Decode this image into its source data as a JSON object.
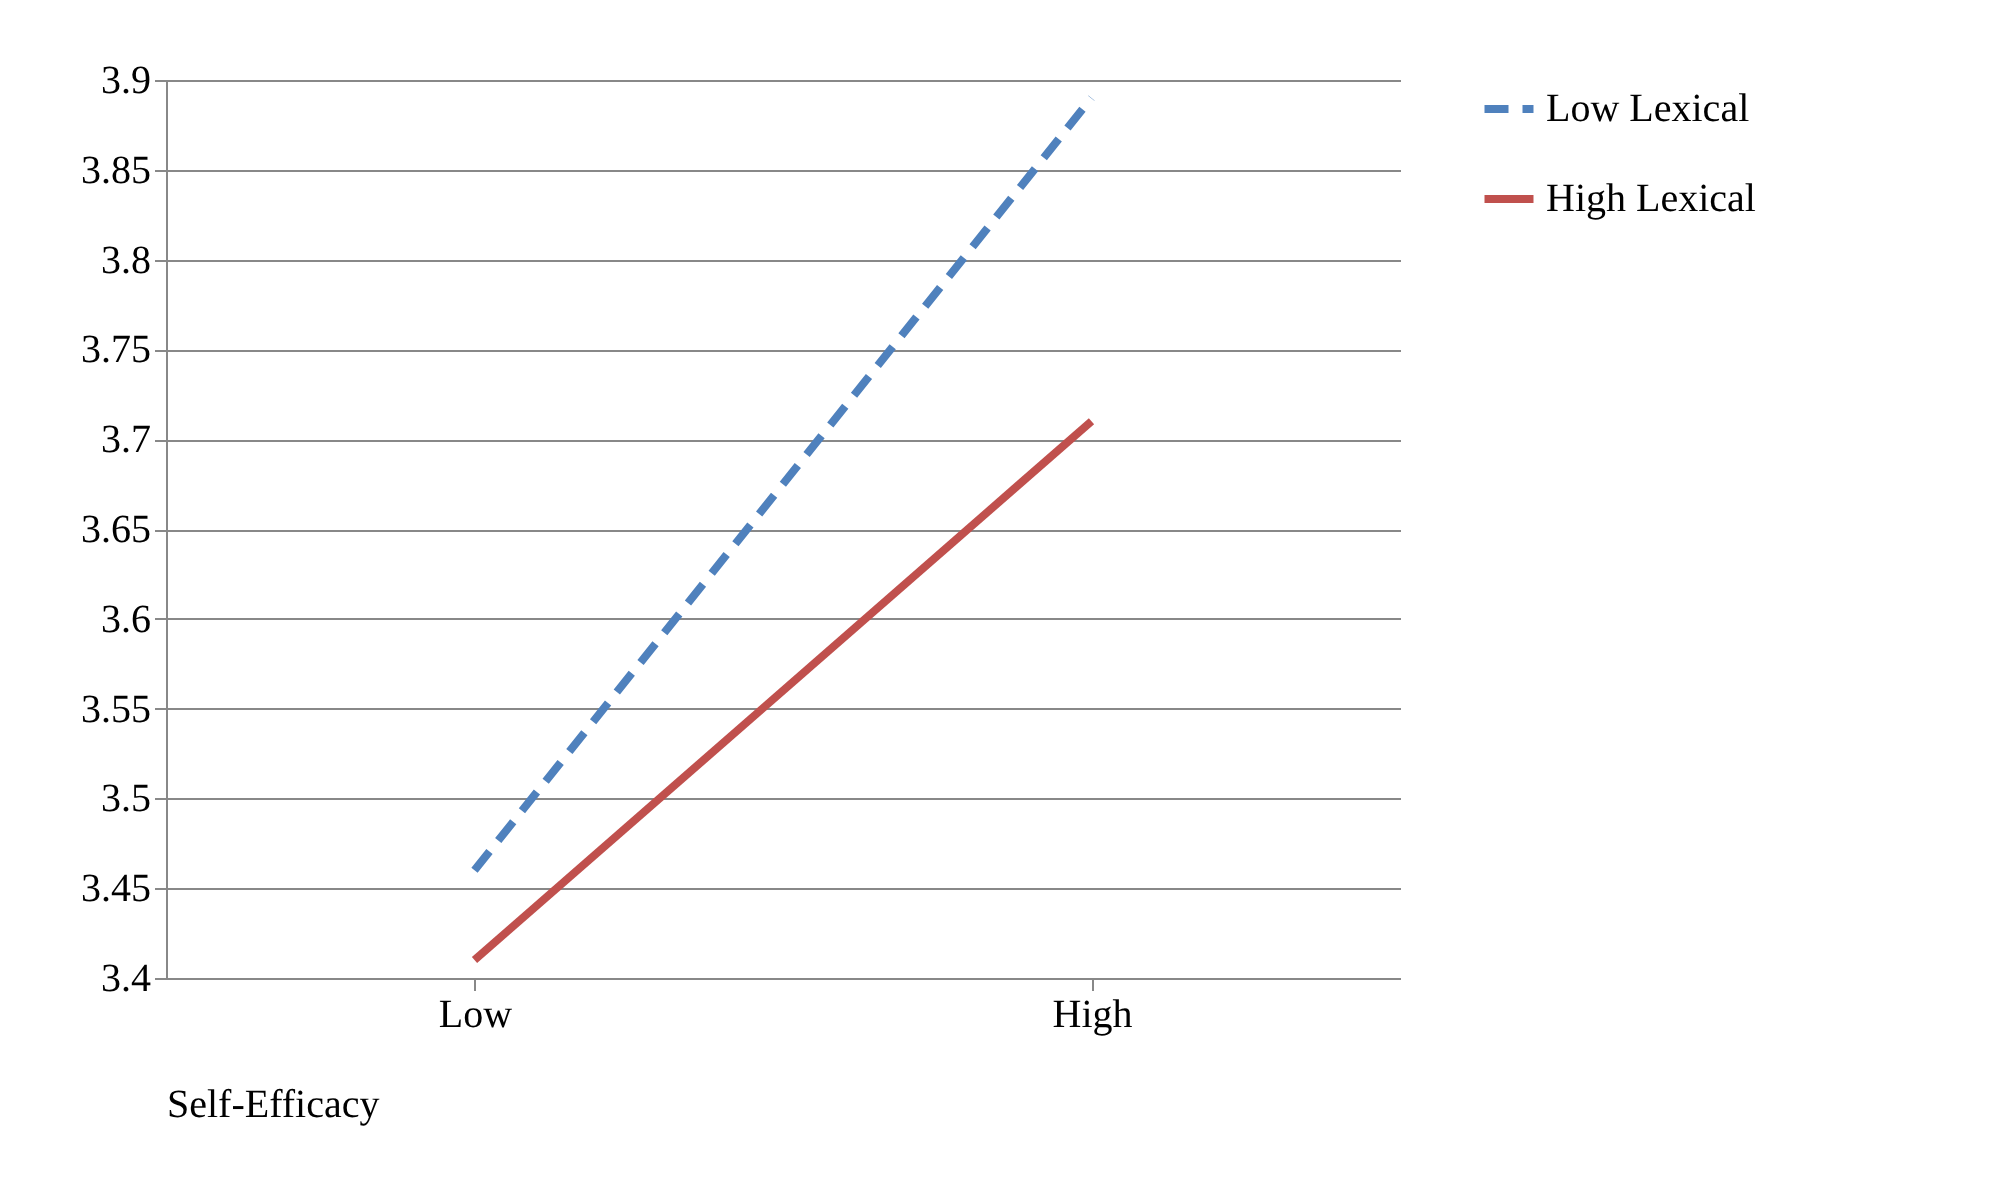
{
  "chart_data": {
    "type": "line",
    "xlabel": "Self-Efficacy",
    "categories": [
      "Low",
      "High"
    ],
    "series": [
      {
        "name": "Low Lexical",
        "color": "#4f81bd",
        "line_style": "dashed",
        "values": [
          3.46,
          3.89
        ]
      },
      {
        "name": "High Lexical",
        "color": "#c0504d",
        "line_style": "solid",
        "values": [
          3.41,
          3.71
        ]
      }
    ],
    "ylim": [
      3.4,
      3.9
    ],
    "yticks": [
      3.4,
      3.45,
      3.5,
      3.55,
      3.6,
      3.65,
      3.7,
      3.75,
      3.8,
      3.85,
      3.9
    ],
    "grid": "y",
    "legend": "right",
    "marker": "none"
  }
}
